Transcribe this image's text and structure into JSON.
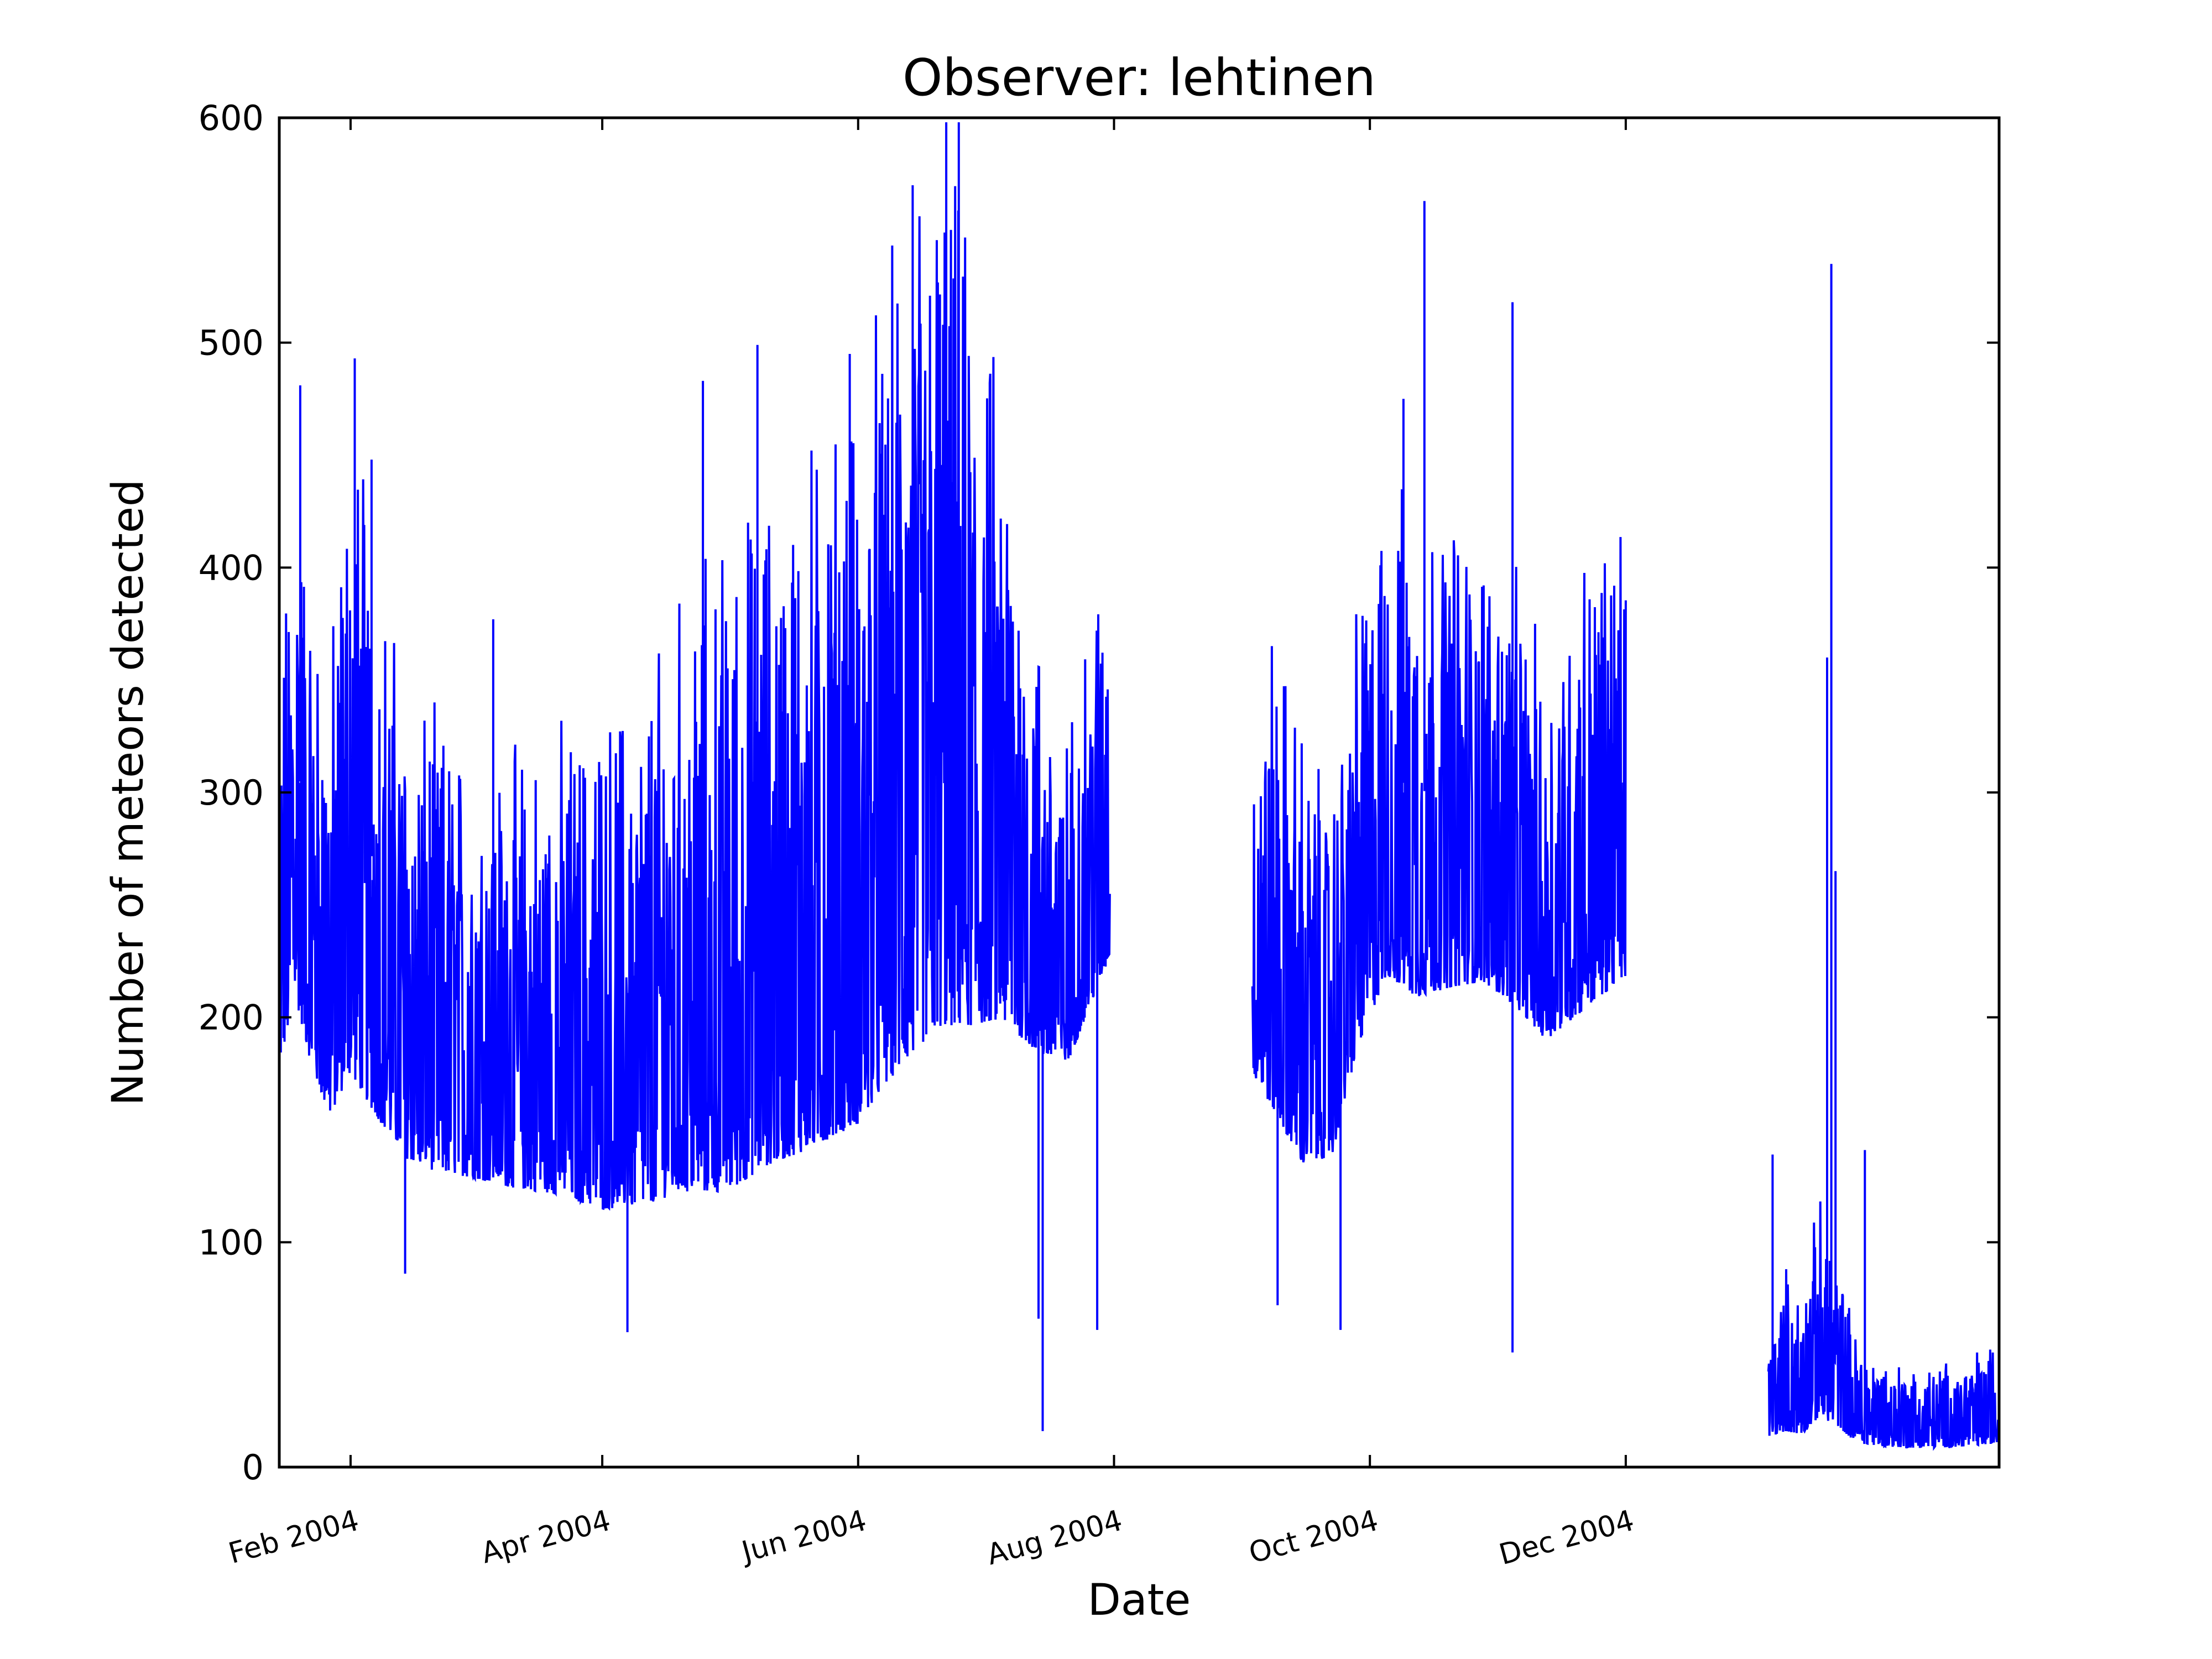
{
  "chart_data": {
    "type": "line",
    "title": "Observer: lehtinen",
    "xlabel": "Date",
    "ylabel": "Number of meteors detected",
    "xlim": [
      "2004-01-15",
      "2005-02-28"
    ],
    "ylim": [
      0,
      600
    ],
    "yticks": [
      0,
      100,
      200,
      300,
      400,
      500,
      600
    ],
    "xticks": [
      {
        "date": "2004-02-01",
        "label": "Feb 2004"
      },
      {
        "date": "2004-04-01",
        "label": "Apr 2004"
      },
      {
        "date": "2004-06-01",
        "label": "Jun 2004"
      },
      {
        "date": "2004-08-01",
        "label": "Aug 2004"
      },
      {
        "date": "2004-10-01",
        "label": "Oct 2004"
      },
      {
        "date": "2004-12-01",
        "label": "Dec 2004"
      }
    ],
    "grid": false,
    "line_color": "#0000ff",
    "series": [
      {
        "segments": [
          {
            "start": "2004-01-15",
            "end": "2004-07-31",
            "points": [
              {
                "x": "2004-01-15",
                "low": 150,
                "high": 340
              },
              {
                "x": "2004-01-19",
                "low": 160,
                "high": 480
              },
              {
                "x": "2004-01-23",
                "low": 140,
                "high": 380
              },
              {
                "x": "2004-01-27",
                "low": 120,
                "high": 360
              },
              {
                "x": "2004-02-01",
                "low": 120,
                "high": 490
              },
              {
                "x": "2004-02-07",
                "low": 110,
                "high": 420
              },
              {
                "x": "2004-02-14",
                "low": 100,
                "high": 350
              },
              {
                "x": "2004-02-21",
                "low": 95,
                "high": 340
              },
              {
                "x": "2004-03-01",
                "low": 95,
                "high": 320
              },
              {
                "x": "2004-03-10",
                "low": 90,
                "high": 320
              },
              {
                "x": "2004-03-20",
                "low": 85,
                "high": 330
              },
              {
                "x": "2004-04-01",
                "low": 75,
                "high": 340
              },
              {
                "x": "2004-04-10",
                "low": 75,
                "high": 350
              },
              {
                "x": "2004-04-20",
                "low": 75,
                "high": 390
              },
              {
                "x": "2004-05-01",
                "low": 70,
                "high": 420
              },
              {
                "x": "2004-05-10",
                "low": 80,
                "high": 440
              },
              {
                "x": "2004-05-20",
                "low": 85,
                "high": 460
              },
              {
                "x": "2004-06-01",
                "low": 95,
                "high": 480
              },
              {
                "x": "2004-06-10",
                "low": 110,
                "high": 550
              },
              {
                "x": "2004-06-20",
                "low": 125,
                "high": 598
              },
              {
                "x": "2004-06-28",
                "low": 135,
                "high": 545
              },
              {
                "x": "2004-07-05",
                "low": 150,
                "high": 480
              },
              {
                "x": "2004-07-12",
                "low": 150,
                "high": 400
              },
              {
                "x": "2004-07-20",
                "low": 150,
                "high": 320
              },
              {
                "x": "2004-07-31",
                "low": 190,
                "high": 435
              }
            ],
            "spikes": [
              {
                "x": "2004-01-20",
                "y": 481
              },
              {
                "x": "2004-02-02",
                "y": 493
              },
              {
                "x": "2004-02-06",
                "y": 448
              },
              {
                "x": "2004-03-06",
                "y": 377
              },
              {
                "x": "2004-04-25",
                "y": 483
              },
              {
                "x": "2004-05-08",
                "y": 499
              },
              {
                "x": "2004-05-30",
                "y": 495
              },
              {
                "x": "2004-06-14",
                "y": 570
              },
              {
                "x": "2004-06-22",
                "y": 598
              },
              {
                "x": "2004-06-25",
                "y": 598
              },
              {
                "x": "2004-07-15",
                "y": 16
              },
              {
                "x": "2004-07-14",
                "y": 66
              },
              {
                "x": "2004-07-28",
                "y": 61
              },
              {
                "x": "2004-04-07",
                "y": 60
              },
              {
                "x": "2004-02-14",
                "y": 86
              }
            ]
          },
          {
            "start": "2004-09-03",
            "end": "2004-12-01",
            "points": [
              {
                "x": "2004-09-03",
                "low": 150,
                "high": 320
              },
              {
                "x": "2004-09-08",
                "low": 120,
                "high": 380
              },
              {
                "x": "2004-09-15",
                "low": 100,
                "high": 330
              },
              {
                "x": "2004-09-22",
                "low": 110,
                "high": 300
              },
              {
                "x": "2004-09-28",
                "low": 150,
                "high": 390
              },
              {
                "x": "2004-10-05",
                "low": 180,
                "high": 440
              },
              {
                "x": "2004-10-12",
                "low": 170,
                "high": 430
              },
              {
                "x": "2004-10-20",
                "low": 175,
                "high": 430
              },
              {
                "x": "2004-10-28",
                "low": 180,
                "high": 420
              },
              {
                "x": "2004-11-05",
                "low": 170,
                "high": 400
              },
              {
                "x": "2004-11-12",
                "low": 160,
                "high": 360
              },
              {
                "x": "2004-11-20",
                "low": 165,
                "high": 410
              },
              {
                "x": "2004-12-01",
                "low": 180,
                "high": 435
              }
            ],
            "spikes": [
              {
                "x": "2004-10-14",
                "y": 563
              },
              {
                "x": "2004-11-04",
                "y": 518
              },
              {
                "x": "2004-11-04",
                "y": 51
              },
              {
                "x": "2004-09-24",
                "y": 61
              },
              {
                "x": "2004-09-09",
                "y": 72
              },
              {
                "x": "2004-10-09",
                "y": 475
              }
            ]
          },
          {
            "start": "2005-01-04",
            "end": "2005-02-28",
            "points": [
              {
                "x": "2005-01-04",
                "low": 5,
                "high": 60
              },
              {
                "x": "2005-01-08",
                "low": 3,
                "high": 90
              },
              {
                "x": "2005-01-12",
                "low": 3,
                "high": 80
              },
              {
                "x": "2005-01-16",
                "low": 5,
                "high": 120
              },
              {
                "x": "2005-01-20",
                "low": 5,
                "high": 100
              },
              {
                "x": "2005-01-25",
                "low": 2,
                "high": 60
              },
              {
                "x": "2005-02-01",
                "low": 2,
                "high": 50
              },
              {
                "x": "2005-02-10",
                "low": 2,
                "high": 45
              },
              {
                "x": "2005-02-20",
                "low": 2,
                "high": 50
              },
              {
                "x": "2005-02-28",
                "low": 2,
                "high": 60
              }
            ],
            "spikes": [
              {
                "x": "2005-01-05",
                "y": 139
              },
              {
                "x": "2005-01-19",
                "y": 535
              },
              {
                "x": "2005-01-18",
                "y": 360
              },
              {
                "x": "2005-01-20",
                "y": 265
              },
              {
                "x": "2005-01-27",
                "y": 141
              }
            ]
          }
        ]
      }
    ]
  }
}
